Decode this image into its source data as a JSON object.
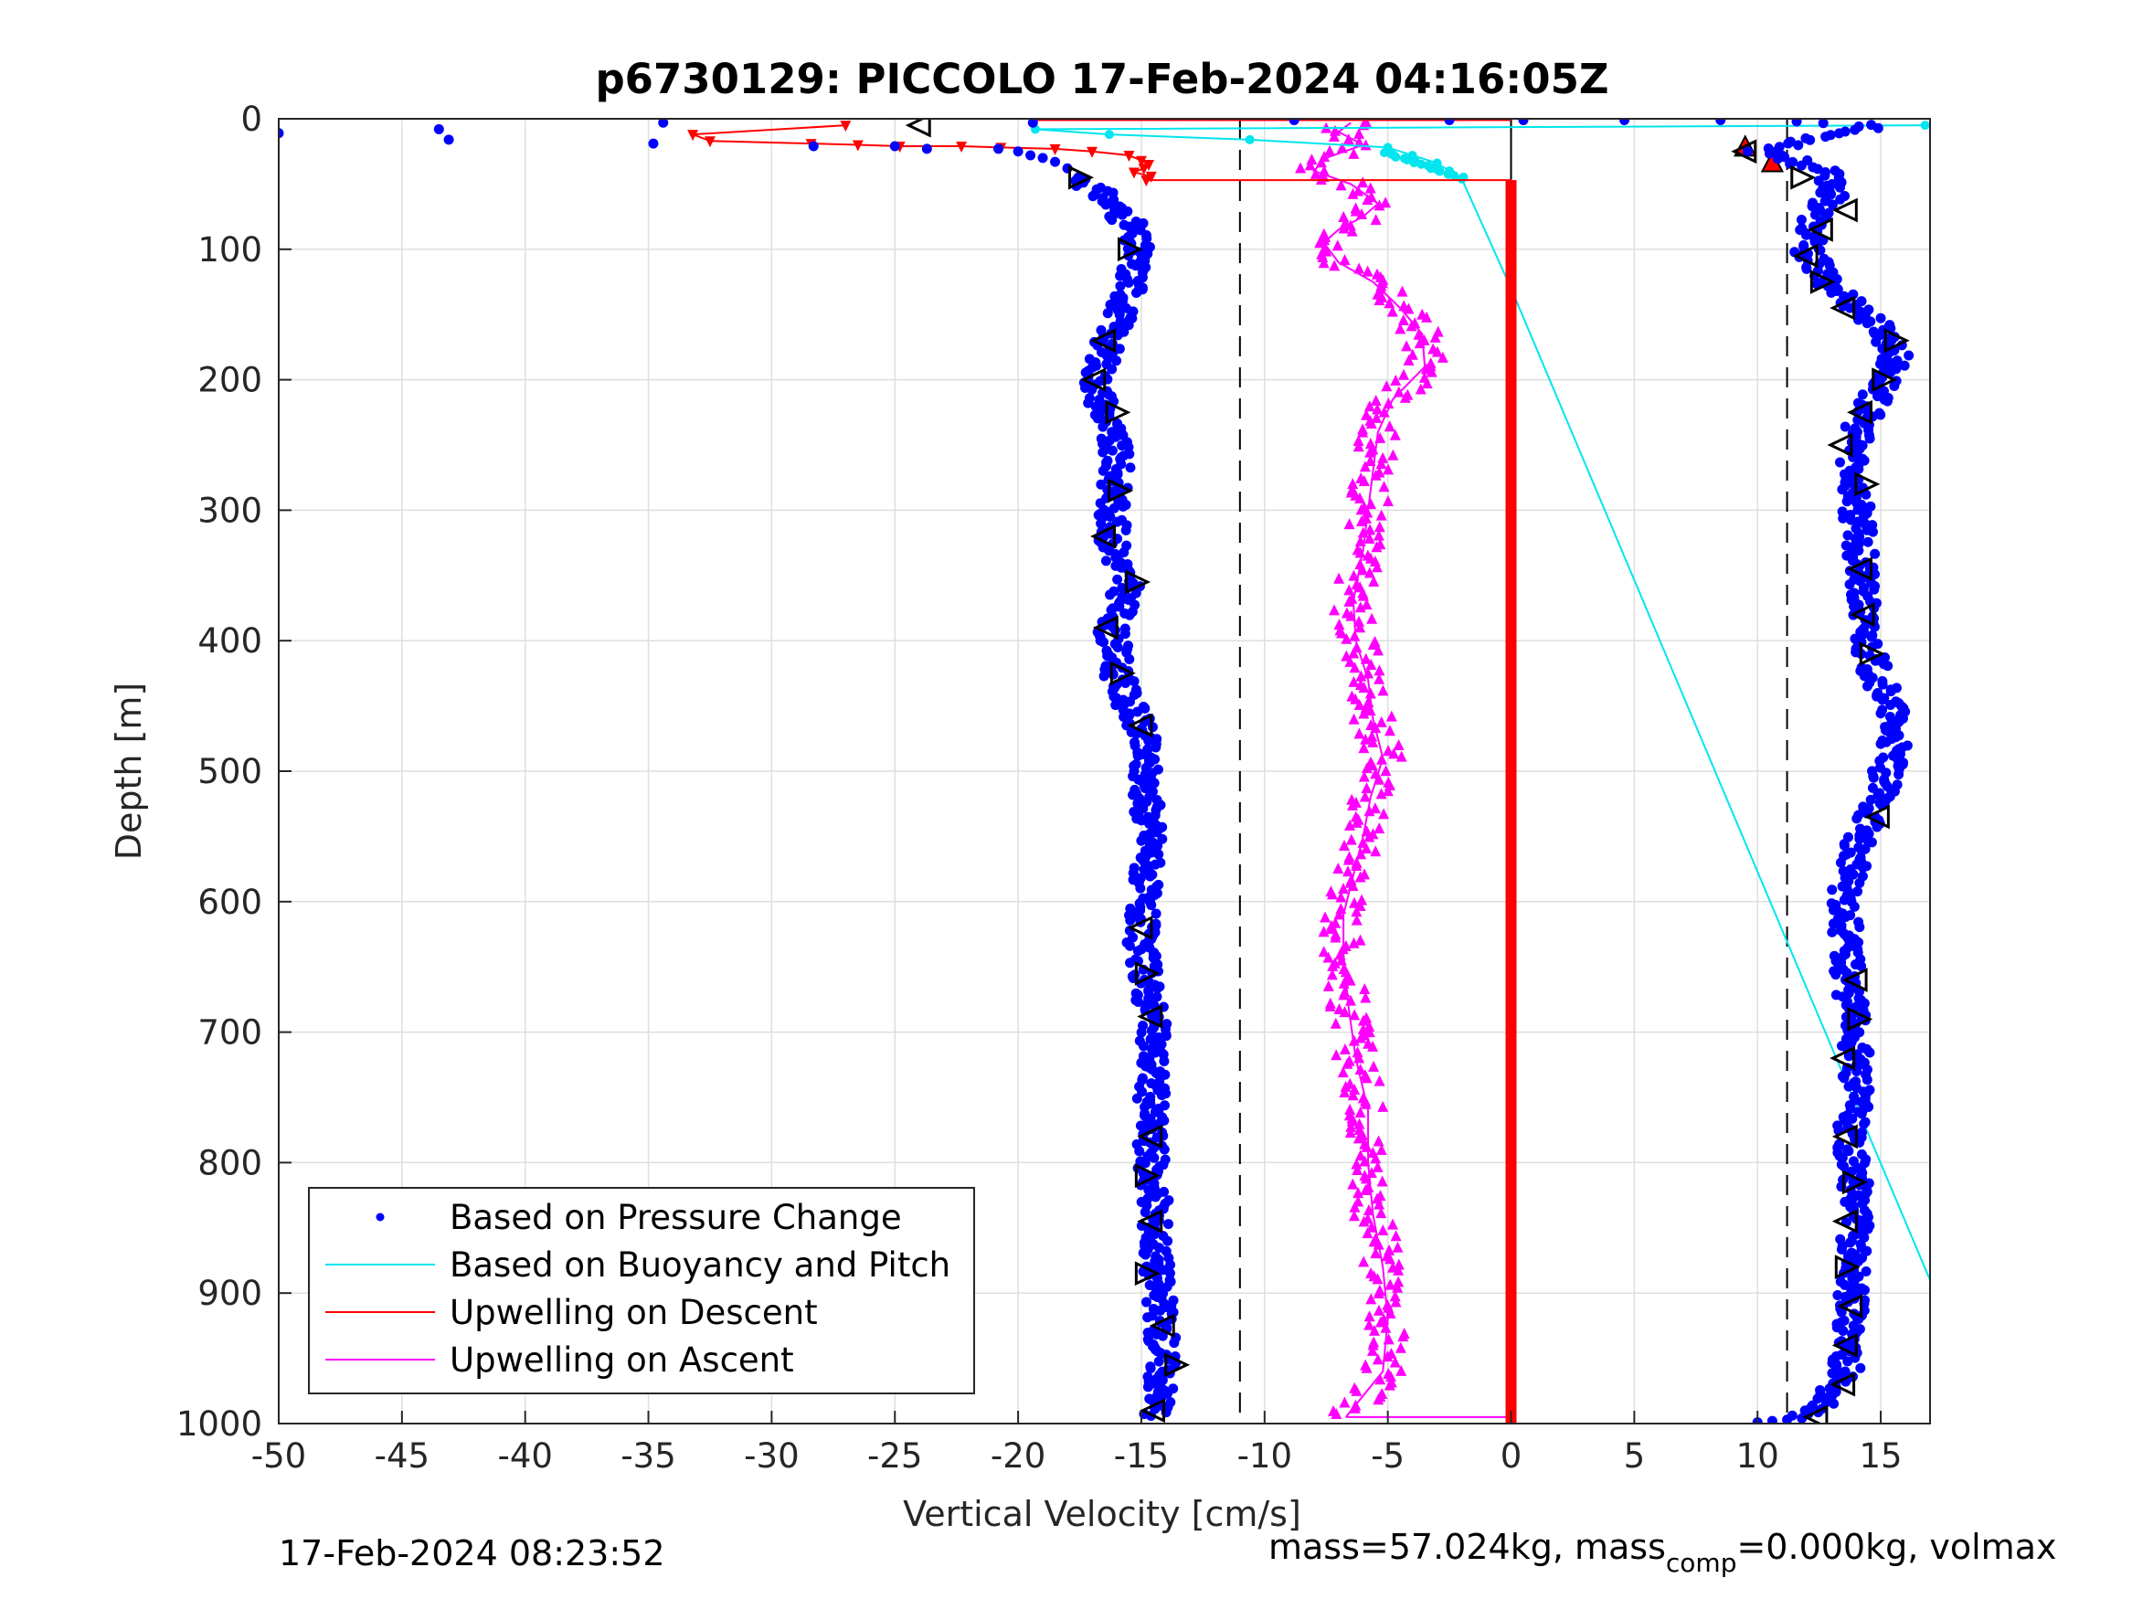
{
  "chart_data": {
    "type": "scatter",
    "title": "p6730129: PICCOLO 17-Feb-2024 04:16:05Z",
    "xlabel": "Vertical Velocity [cm/s]",
    "ylabel": "Depth [m]",
    "xlim": [
      -50,
      17
    ],
    "ylim": [
      0,
      1000
    ],
    "y_reversed": true,
    "grid": true,
    "x_ticks": [
      -50,
      -45,
      -40,
      -35,
      -30,
      -25,
      -20,
      -15,
      -10,
      -5,
      0,
      5,
      10,
      15
    ],
    "x_tick_labels": [
      "-50",
      "-45",
      "-40",
      "-35",
      "-30",
      "-25",
      "-20",
      "-15",
      "-10",
      "-5",
      "0",
      "5",
      "10",
      "15"
    ],
    "y_ticks": [
      0,
      100,
      200,
      300,
      400,
      500,
      600,
      700,
      800,
      900,
      1000
    ],
    "y_tick_labels": [
      "0",
      "100",
      "200",
      "300",
      "400",
      "500",
      "600",
      "700",
      "800",
      "900",
      "1000"
    ],
    "reference_lines": {
      "dashed_x": [
        -11,
        11.2
      ],
      "solid_x": [
        0
      ]
    },
    "legend": {
      "placement": "bottom-left",
      "entries": [
        {
          "label": "Based on Pressure Change",
          "color": "#0000ff",
          "marker": "dot"
        },
        {
          "label": "Based on Buoyancy and Pitch",
          "color": "#00e5ee",
          "marker": "line"
        },
        {
          "label": "Upwelling on Descent",
          "color": "#ff0000",
          "marker": "line"
        },
        {
          "label": "Upwelling on Ascent",
          "color": "#ff00ff",
          "marker": "line"
        }
      ]
    },
    "series": [
      {
        "key": "pressure_descent",
        "color": "#0000ff",
        "profile": [
          [
            -17.5,
            45
          ],
          [
            -16.5,
            60
          ],
          [
            -15.5,
            80
          ],
          [
            -15.2,
            100
          ],
          [
            -15.4,
            130
          ],
          [
            -16.3,
            170
          ],
          [
            -16.8,
            200
          ],
          [
            -16.4,
            230
          ],
          [
            -16.0,
            260
          ],
          [
            -16.1,
            290
          ],
          [
            -16.2,
            320
          ],
          [
            -15.6,
            360
          ],
          [
            -16.2,
            395
          ],
          [
            -15.9,
            430
          ],
          [
            -15.0,
            470
          ],
          [
            -14.8,
            510
          ],
          [
            -14.6,
            560
          ],
          [
            -15.0,
            600
          ],
          [
            -15.0,
            640
          ],
          [
            -14.6,
            680
          ],
          [
            -14.5,
            720
          ],
          [
            -14.6,
            760
          ],
          [
            -14.6,
            800
          ],
          [
            -14.4,
            850
          ],
          [
            -14.3,
            900
          ],
          [
            -14.1,
            950
          ],
          [
            -14.3,
            995
          ]
        ],
        "near_surface": [
          [
            -50,
            11
          ],
          [
            -43.5,
            8
          ],
          [
            -43.1,
            16
          ],
          [
            -34.4,
            3
          ],
          [
            -34.8,
            19
          ],
          [
            -28.3,
            21
          ],
          [
            -25,
            21
          ],
          [
            -23.7,
            23
          ],
          [
            -20.8,
            23
          ],
          [
            -20,
            25
          ],
          [
            -19.5,
            28
          ],
          [
            -19,
            30
          ],
          [
            -18.5,
            33
          ],
          [
            -18,
            38
          ],
          [
            -19.4,
            3
          ]
        ]
      },
      {
        "key": "pressure_ascent",
        "color": "#0000ff",
        "profile": [
          [
            11.0,
            995
          ],
          [
            12.4,
            990
          ],
          [
            13.6,
            960
          ],
          [
            13.8,
            920
          ],
          [
            13.9,
            880
          ],
          [
            14.0,
            830
          ],
          [
            13.8,
            780
          ],
          [
            14.0,
            740
          ],
          [
            14.0,
            700
          ],
          [
            13.7,
            660
          ],
          [
            13.6,
            620
          ],
          [
            13.6,
            590
          ],
          [
            14.0,
            560
          ],
          [
            14.5,
            540
          ],
          [
            15.1,
            510
          ],
          [
            15.5,
            480
          ],
          [
            15.4,
            450
          ],
          [
            14.7,
            420
          ],
          [
            14.3,
            390
          ],
          [
            14.2,
            360
          ],
          [
            14.2,
            330
          ],
          [
            14.0,
            300
          ],
          [
            13.9,
            270
          ],
          [
            14.0,
            240
          ],
          [
            14.6,
            220
          ],
          [
            15.2,
            200
          ],
          [
            15.6,
            180
          ],
          [
            15.2,
            165
          ],
          [
            14.4,
            150
          ],
          [
            13.5,
            135
          ],
          [
            12.6,
            120
          ],
          [
            12.0,
            100
          ],
          [
            12.2,
            80
          ],
          [
            12.8,
            65
          ],
          [
            13.2,
            50
          ],
          [
            12.6,
            40
          ],
          [
            11.5,
            32
          ],
          [
            10.6,
            25
          ],
          [
            11.8,
            18
          ],
          [
            13.0,
            12
          ],
          [
            14.2,
            8
          ],
          [
            14.7,
            5
          ],
          [
            13.0,
            3
          ],
          [
            11.8,
            2
          ]
        ],
        "near_surface": [
          [
            -8.8,
            1
          ],
          [
            -2.5,
            1
          ],
          [
            0.5,
            1
          ],
          [
            4.6,
            1
          ],
          [
            8.5,
            1
          ],
          [
            9.6,
            25
          ]
        ]
      },
      {
        "key": "pressure_ascent_markers",
        "color": "#000000",
        "marker": "open-triangle",
        "points": [
          [
            -24,
            5,
            "left"
          ],
          [
            -17.5,
            45,
            "right"
          ],
          [
            -15.5,
            100,
            "right"
          ],
          [
            -16.5,
            170,
            "left"
          ],
          [
            -16.9,
            200,
            "left"
          ],
          [
            -16.0,
            225,
            "right"
          ],
          [
            -15.9,
            285,
            "right"
          ],
          [
            -16.5,
            320,
            "left"
          ],
          [
            -15.2,
            355,
            "right"
          ],
          [
            -16.4,
            390,
            "left"
          ],
          [
            -15.8,
            425,
            "right"
          ],
          [
            -15.0,
            465,
            "left"
          ],
          [
            -15.0,
            620,
            "left"
          ],
          [
            -14.8,
            655,
            "right"
          ],
          [
            -14.6,
            688,
            "left"
          ],
          [
            -14.6,
            780,
            "left"
          ],
          [
            -14.8,
            810,
            "right"
          ],
          [
            -14.6,
            845,
            "left"
          ],
          [
            -14.8,
            885,
            "right"
          ],
          [
            -14.1,
            925,
            "left"
          ],
          [
            -13.6,
            955,
            "right"
          ],
          [
            -14.5,
            990,
            "left"
          ],
          [
            9.5,
            25,
            "left"
          ],
          [
            11.8,
            45,
            "right"
          ],
          [
            13.6,
            70,
            "left"
          ],
          [
            12.6,
            85,
            "left"
          ],
          [
            12.0,
            105,
            "left"
          ],
          [
            12.6,
            125,
            "right"
          ],
          [
            13.5,
            145,
            "left"
          ],
          [
            15.6,
            170,
            "right"
          ],
          [
            15.1,
            200,
            "right"
          ],
          [
            14.2,
            225,
            "left"
          ],
          [
            13.4,
            250,
            "left"
          ],
          [
            14.4,
            280,
            "right"
          ],
          [
            14.2,
            345,
            "left"
          ],
          [
            14.3,
            380,
            "left"
          ],
          [
            14.6,
            410,
            "right"
          ],
          [
            14.9,
            535,
            "left"
          ],
          [
            14.0,
            660,
            "left"
          ],
          [
            14.1,
            690,
            "right"
          ],
          [
            13.5,
            720,
            "left"
          ],
          [
            13.6,
            780,
            "left"
          ],
          [
            13.9,
            815,
            "right"
          ],
          [
            13.6,
            845,
            "left"
          ],
          [
            13.6,
            880,
            "right"
          ],
          [
            13.8,
            910,
            "left"
          ],
          [
            13.6,
            940,
            "left"
          ],
          [
            13.5,
            970,
            "left"
          ],
          [
            12.4,
            995,
            "left"
          ]
        ]
      },
      {
        "key": "buoyancy_pitch",
        "name": "Based on Buoyancy and Pitch",
        "color": "#00e5ee",
        "points": [
          [
            16.8,
            5
          ],
          [
            -19.3,
            8
          ],
          [
            -16.3,
            12
          ],
          [
            -10.6,
            16
          ],
          [
            -5.0,
            22
          ],
          [
            -4.0,
            28
          ],
          [
            -3.0,
            34
          ],
          [
            -2.5,
            40
          ],
          [
            -2.0,
            46
          ],
          [
            0.0,
            130
          ],
          [
            17.0,
            890
          ]
        ]
      },
      {
        "key": "upwelling_descent",
        "name": "Upwelling on Descent",
        "color": "#ff0000",
        "near_surface": [
          [
            -27,
            5
          ],
          [
            -33.2,
            12
          ],
          [
            -32.5,
            17
          ],
          [
            -28.4,
            19
          ],
          [
            -26.5,
            20
          ],
          [
            -24.8,
            21
          ],
          [
            -22.3,
            21
          ],
          [
            -20.7,
            22
          ],
          [
            -18.5,
            23
          ],
          [
            -17.0,
            25
          ],
          [
            -15.5,
            28
          ],
          [
            -15.0,
            32
          ],
          [
            -14.7,
            35
          ],
          [
            -14.9,
            38
          ],
          [
            -15.3,
            41
          ],
          [
            -14.6,
            44
          ],
          [
            -14.8,
            47
          ],
          [
            0,
            47
          ],
          [
            0,
            1000
          ]
        ],
        "surface_line": [
          [
            -19.5,
            1
          ],
          [
            0,
            1
          ]
        ],
        "constant_value": 0,
        "depth_range": [
          47,
          1000
        ],
        "ascent_triangles": [
          [
            9.5,
            22
          ],
          [
            10.6,
            34
          ]
        ]
      },
      {
        "key": "upwelling_ascent",
        "name": "Upwelling on Ascent",
        "color": "#ff00ff",
        "profile": [
          [
            -6.7,
            995
          ],
          [
            -5.2,
            960
          ],
          [
            -5.0,
            920
          ],
          [
            -5.2,
            880
          ],
          [
            -5.6,
            840
          ],
          [
            -5.8,
            800
          ],
          [
            -5.8,
            760
          ],
          [
            -6.3,
            720
          ],
          [
            -6.6,
            680
          ],
          [
            -6.8,
            640
          ],
          [
            -6.8,
            610
          ],
          [
            -6.4,
            580
          ],
          [
            -6.0,
            550
          ],
          [
            -5.7,
            520
          ],
          [
            -5.2,
            490
          ],
          [
            -5.6,
            460
          ],
          [
            -5.8,
            430
          ],
          [
            -6.3,
            400
          ],
          [
            -6.4,
            370
          ],
          [
            -6.0,
            330
          ],
          [
            -5.8,
            300
          ],
          [
            -5.6,
            270
          ],
          [
            -5.4,
            240
          ],
          [
            -4.8,
            215
          ],
          [
            -3.5,
            190
          ],
          [
            -3.6,
            165
          ],
          [
            -4.5,
            145
          ],
          [
            -5.6,
            125
          ],
          [
            -7.0,
            110
          ],
          [
            -7.6,
            95
          ],
          [
            -7.0,
            85
          ],
          [
            -6.0,
            75
          ],
          [
            -5.4,
            65
          ],
          [
            -6.5,
            50
          ],
          [
            -8.0,
            40
          ],
          [
            -7.5,
            30
          ],
          [
            -6.0,
            20
          ],
          [
            -7.0,
            10
          ],
          [
            -6.5,
            3
          ]
        ],
        "surface_line": [
          [
            -19.5,
            1
          ],
          [
            0,
            1
          ]
        ],
        "bottom_line": [
          [
            -6.7,
            995
          ],
          [
            0,
            995
          ]
        ]
      }
    ]
  },
  "footer": {
    "timestamp": "17-Feb-2024 08:23:52",
    "mass_text": "mass=57.024kg, mass",
    "mass_sub": "comp",
    "mass_tail": "=0.000kg, volmax"
  }
}
